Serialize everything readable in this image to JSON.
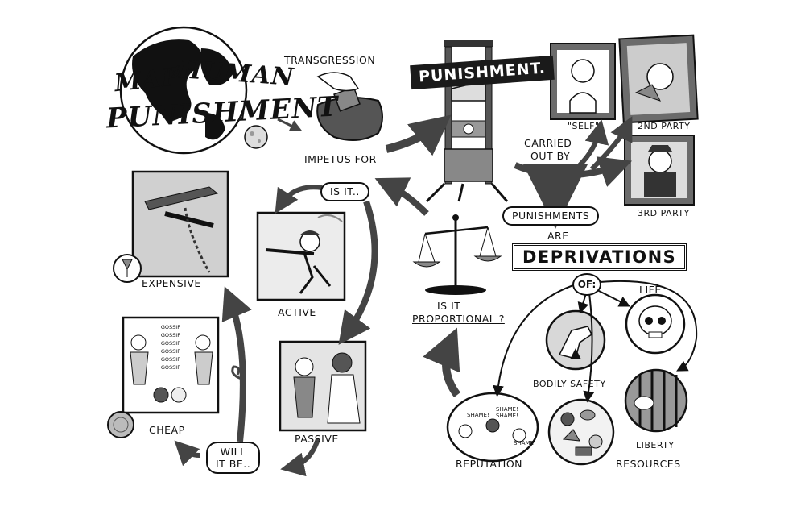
{
  "title": {
    "line1a": "MAP",
    "line1b": "of",
    "line1c": "HUMAN",
    "line2": "PUNISHMENT"
  },
  "header_labels": {
    "transgression": "TRANSGRESSION",
    "impetus_for": "IMPETUS FOR",
    "punishment_banner": "PUNISHMENT.",
    "carried_out_by_1": "CARRIED",
    "carried_out_by_2": "OUT BY"
  },
  "agents": {
    "self": "\"SELF\"",
    "second_party": "2ND PARTY",
    "third_party": "3RD PARTY"
  },
  "deprivation": {
    "punishments": "PUNISHMENTS",
    "are": "ARE",
    "deprivations": "DEPRIVATIONS",
    "of": "OF:",
    "items": {
      "life": "LIFE",
      "bodily_safety": "BODILY SAFETY",
      "liberty": "LIBERTY",
      "resources": "RESOURCES",
      "reputation": "REPUTATION"
    }
  },
  "proportion": {
    "line1": "IS IT",
    "line2": "PROPORTIONAL ?"
  },
  "cycle": {
    "is_it": "IS IT..",
    "will_it_be_1": "WILL",
    "will_it_be_2": "IT BE..",
    "expensive": "EXPENSIVE",
    "active": "ACTIVE",
    "passive": "PASSIVE",
    "cheap": "CHEAP"
  },
  "picture_text": {
    "gossip": "GOSSIP",
    "shame": "SHAME!"
  },
  "colors": {
    "ink": "#111111",
    "panel_fill": "#cfcfcf",
    "frame": "#6b6b6b",
    "arrow": "#444444"
  }
}
